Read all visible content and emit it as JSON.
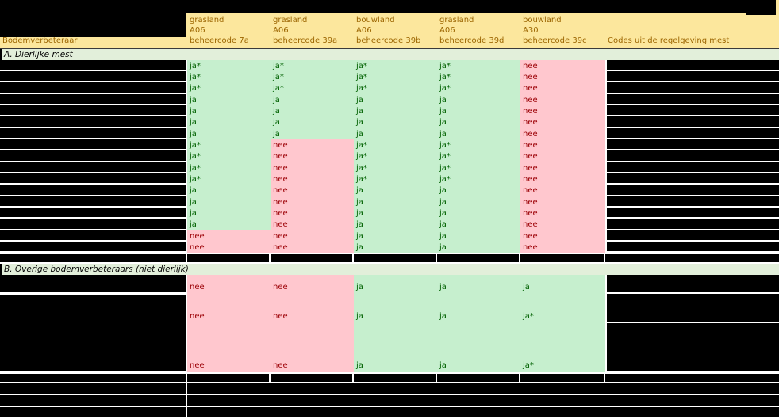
{
  "colors": {
    "header_bg": "#FCE79D",
    "header_text": "#9C6500",
    "section_bg": "#E2EFDA",
    "good_bg": "#C6EFCE",
    "good_text": "#006100",
    "bad_bg": "#FFC7CE",
    "bad_text": "#9C0006",
    "redaction": "#000000",
    "gridline": "#FFFFFF"
  },
  "header": {
    "row_label_column": "Bodemverbeteraar",
    "data_columns": [
      {
        "land_use": "grasland",
        "package": "A06",
        "code": "beheercode 7a"
      },
      {
        "land_use": "grasland",
        "package": "A06",
        "code": "beheercode 39a"
      },
      {
        "land_use": "bouwland",
        "package": "A06",
        "code": "beheercode 39b"
      },
      {
        "land_use": "grasland",
        "package": "A06",
        "code": "beheercode 39d"
      },
      {
        "land_use": "bouwland",
        "package": "A30",
        "code": "beheercode 39c"
      }
    ],
    "codes_column": "Codes uit de regelgeving mest"
  },
  "sections": {
    "a": {
      "label": "A. Dierlijke mest",
      "rows": [
        [
          "ja*",
          "ja*",
          "ja*",
          "ja*",
          "nee"
        ],
        [
          "ja*",
          "ja*",
          "ja*",
          "ja*",
          "nee"
        ],
        [
          "ja*",
          "ja*",
          "ja*",
          "ja*",
          "nee"
        ],
        [
          "ja",
          "ja",
          "ja",
          "ja",
          "nee"
        ],
        [
          "ja",
          "ja",
          "ja",
          "ja",
          "nee"
        ],
        [
          "ja",
          "ja",
          "ja",
          "ja",
          "nee"
        ],
        [
          "ja",
          "ja",
          "ja",
          "ja",
          "nee"
        ],
        [
          "ja*",
          "nee",
          "ja*",
          "ja*",
          "nee"
        ],
        [
          "ja*",
          "nee",
          "ja*",
          "ja*",
          "nee"
        ],
        [
          "ja*",
          "nee",
          "ja*",
          "ja*",
          "nee"
        ],
        [
          "ja*",
          "nee",
          "ja*",
          "ja*",
          "nee"
        ],
        [
          "ja",
          "nee",
          "ja",
          "ja",
          "nee"
        ],
        [
          "ja",
          "nee",
          "ja",
          "ja",
          "nee"
        ],
        [
          "ja",
          "nee",
          "ja",
          "ja",
          "nee"
        ],
        [
          "ja",
          "nee",
          "ja",
          "ja",
          "nee"
        ],
        [
          "nee",
          "nee",
          "ja",
          "ja",
          "nee"
        ],
        [
          "nee",
          "nee",
          "ja",
          "ja",
          "nee"
        ]
      ]
    },
    "b": {
      "label": "B. Overige bodemverbeteraars (niet dierlijk)",
      "rows": [
        [
          "nee",
          "nee",
          "ja",
          "ja",
          "ja"
        ],
        [
          "nee",
          "nee",
          "ja",
          "ja",
          "ja*"
        ],
        [
          "nee",
          "nee",
          "ja",
          "ja",
          "ja*"
        ]
      ]
    }
  }
}
